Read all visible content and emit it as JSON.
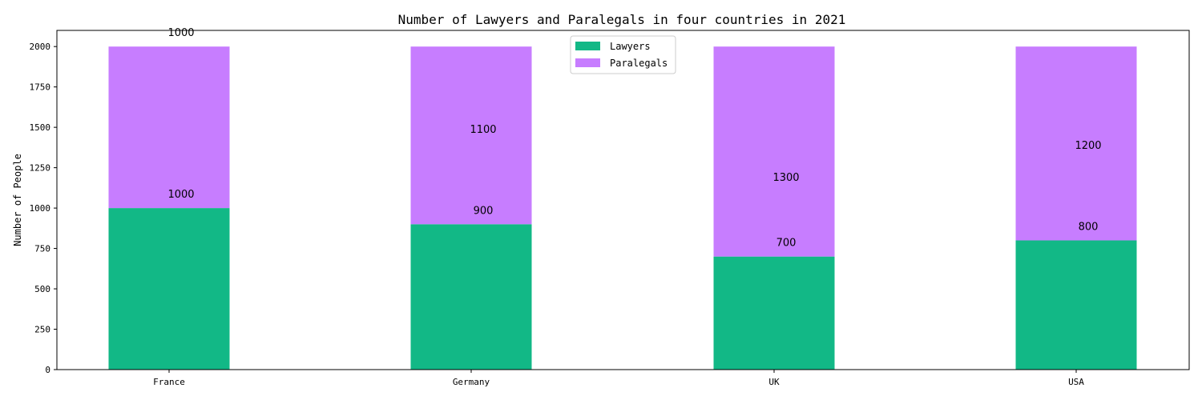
{
  "chart_data": {
    "type": "bar",
    "stacked": true,
    "title": "Number of Lawyers and Paralegals in four countries in 2021",
    "xlabel": "",
    "ylabel": "Number of People",
    "categories": [
      "France",
      "Germany",
      "UK",
      "USA"
    ],
    "series": [
      {
        "name": "Lawyers",
        "values": [
          1000,
          900,
          700,
          800
        ],
        "color": "#12b886"
      },
      {
        "name": "Paralegals",
        "values": [
          1000,
          1100,
          1300,
          1200
        ],
        "color": "#c77dff"
      }
    ],
    "ylim": [
      0,
      2100
    ],
    "yticks": [
      0,
      250,
      500,
      750,
      1000,
      1250,
      1500,
      1750,
      2000
    ],
    "grid": false,
    "legend": "top-center"
  }
}
